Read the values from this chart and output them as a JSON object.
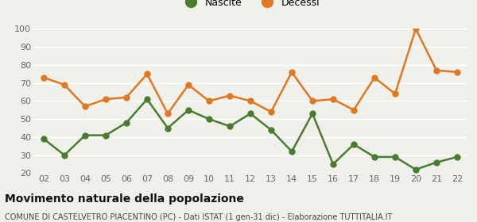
{
  "years": [
    "02",
    "03",
    "04",
    "05",
    "06",
    "07",
    "08",
    "09",
    "10",
    "11",
    "12",
    "13",
    "14",
    "15",
    "16",
    "17",
    "18",
    "19",
    "20",
    "21",
    "22"
  ],
  "nascite": [
    39,
    30,
    41,
    41,
    48,
    61,
    45,
    55,
    50,
    46,
    53,
    44,
    32,
    53,
    25,
    36,
    29,
    29,
    22,
    26,
    29
  ],
  "decessi": [
    73,
    69,
    57,
    61,
    62,
    75,
    53,
    69,
    60,
    63,
    60,
    54,
    76,
    60,
    61,
    55,
    73,
    64,
    100,
    77,
    76
  ],
  "nascite_color": "#4a7c2f",
  "decessi_color": "#e07820",
  "bg_color": "#f0f0eb",
  "grid_color": "#ffffff",
  "ylim": [
    20,
    100
  ],
  "yticks": [
    20,
    30,
    40,
    50,
    60,
    70,
    80,
    90,
    100
  ],
  "title": "Movimento naturale della popolazione",
  "subtitle": "COMUNE DI CASTELVETRO PIACENTINO (PC) - Dati ISTAT (1 gen-31 dic) - Elaborazione TUTTITALIA.IT",
  "legend_nascite": "Nascite",
  "legend_decessi": "Decessi",
  "title_fontsize": 10,
  "subtitle_fontsize": 7,
  "axis_fontsize": 8,
  "marker_size": 5,
  "line_width": 1.8
}
